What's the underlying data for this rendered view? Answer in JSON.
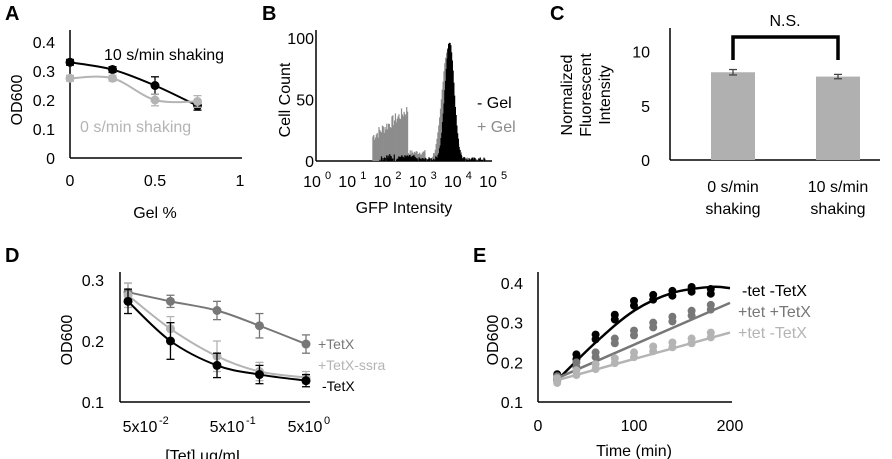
{
  "colors": {
    "black": "#000000",
    "gray": "#8c8c8c",
    "light_gray": "#b4b4b4",
    "dark_gray": "#777777"
  },
  "chart_data": [
    {
      "panel": "A",
      "type": "line",
      "xlabel": "Gel %",
      "ylabel": "OD600",
      "xticks": [
        "0",
        "0.5",
        "1"
      ],
      "yticks": [
        "0",
        "0.1",
        "0.2",
        "0.3",
        "0.4"
      ],
      "xlim": [
        0,
        1
      ],
      "ylim": [
        0,
        0.4
      ],
      "series": [
        {
          "name": "10 s/min shaking",
          "color": "#000000",
          "x": [
            0,
            0.25,
            0.5,
            0.75
          ],
          "y": [
            0.33,
            0.305,
            0.25,
            0.18
          ],
          "err": [
            0.01,
            0.01,
            0.03,
            0.015
          ]
        },
        {
          "name": "0 s/min shaking",
          "color": "#b4b4b4",
          "x": [
            0,
            0.25,
            0.5,
            0.75
          ],
          "y": [
            0.275,
            0.275,
            0.2,
            0.195
          ],
          "err": [
            0.01,
            0.01,
            0.02,
            0.02
          ]
        }
      ]
    },
    {
      "panel": "B",
      "type": "histogram",
      "xlabel": "GFP Intensity",
      "ylabel": "Cell Count",
      "xticks_exp": [
        "0",
        "1",
        "2",
        "3",
        "4",
        "5"
      ],
      "xtick_base": "10",
      "yticks": [
        "0",
        "50",
        "100"
      ],
      "ylim": [
        0,
        100
      ],
      "legend": [
        {
          "label": "- Gel",
          "color": "#000000"
        },
        {
          "label": "+ Gel",
          "color": "#8c8c8c"
        }
      ]
    },
    {
      "panel": "C",
      "type": "bar",
      "ylabel_lines": [
        "Normalized",
        "Fluorescent",
        "Intensity"
      ],
      "yticks": [
        "0",
        "5",
        "10"
      ],
      "ylim": [
        0,
        12
      ],
      "categories": [
        [
          "0 s/min",
          "shaking"
        ],
        [
          "10 s/min",
          "shaking"
        ]
      ],
      "values": [
        8.1,
        7.7
      ],
      "err": [
        0.25,
        0.2
      ],
      "annotation": "N.S."
    },
    {
      "panel": "D",
      "type": "line",
      "xlabel": "[Tet] µg/mL",
      "ylabel": "OD600",
      "xticks": [
        "5x10",
        "5x10",
        "5x10"
      ],
      "xticks_exp": [
        "-2",
        "-1",
        "0"
      ],
      "yticks": [
        "0.1",
        "0.2",
        "0.3"
      ],
      "ylim": [
        0.1,
        0.3
      ],
      "x": [
        0.05,
        0.15,
        0.5,
        1.5,
        5
      ],
      "series": [
        {
          "name": "+TetX",
          "color": "#777777",
          "y": [
            0.28,
            0.265,
            0.25,
            0.225,
            0.195
          ],
          "err": [
            0.015,
            0.01,
            0.015,
            0.02,
            0.015
          ]
        },
        {
          "name": "+TetX-ssra",
          "color": "#b4b4b4",
          "y": [
            0.275,
            0.22,
            0.175,
            0.15,
            0.14
          ],
          "err": [
            0.02,
            0.02,
            0.025,
            0.015,
            0.01
          ]
        },
        {
          "name": "-TetX",
          "color": "#000000",
          "y": [
            0.265,
            0.2,
            0.16,
            0.145,
            0.135
          ],
          "err": [
            0.02,
            0.03,
            0.02,
            0.015,
            0.01
          ]
        }
      ]
    },
    {
      "panel": "E",
      "type": "scatter",
      "xlabel": "Time (min)",
      "ylabel": "OD600",
      "xticks": [
        "0",
        "100",
        "200"
      ],
      "yticks": [
        "0.1",
        "0.2",
        "0.3",
        "0.4"
      ],
      "xlim": [
        0,
        200
      ],
      "ylim": [
        0.1,
        0.4
      ],
      "x": [
        20,
        40,
        60,
        80,
        100,
        120,
        140,
        160,
        180
      ],
      "series": [
        {
          "name": "-tet -TetX",
          "color": "#000000",
          "y": [
            0.17,
            0.22,
            0.27,
            0.32,
            0.355,
            0.37,
            0.38,
            0.39,
            0.385
          ],
          "fit": [
            [
              20,
              0.155
            ],
            [
              60,
              0.25
            ],
            [
              100,
              0.33
            ],
            [
              140,
              0.375
            ],
            [
              180,
              0.39
            ],
            [
              200,
              0.387
            ]
          ]
        },
        {
          "name": "+tet +TetX",
          "color": "#777777",
          "y": [
            0.165,
            0.2,
            0.225,
            0.26,
            0.28,
            0.3,
            0.315,
            0.33,
            0.345
          ],
          "fit": [
            [
              20,
              0.16
            ],
            [
              200,
              0.35
            ]
          ]
        },
        {
          "name": "+tet -TetX",
          "color": "#b4b4b4",
          "y": [
            0.16,
            0.18,
            0.195,
            0.21,
            0.225,
            0.24,
            0.25,
            0.26,
            0.275
          ],
          "fit": [
            [
              20,
              0.155
            ],
            [
              200,
              0.275
            ]
          ]
        }
      ]
    }
  ]
}
